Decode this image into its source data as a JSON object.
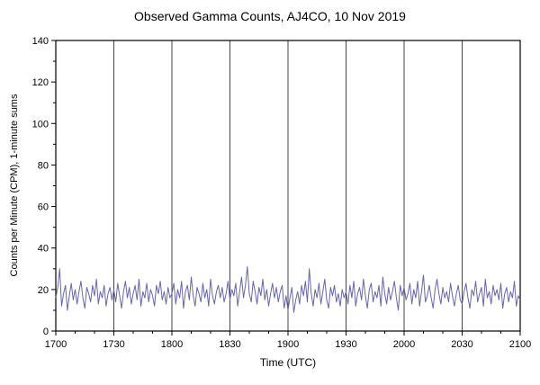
{
  "chart_data": {
    "type": "line",
    "title": "Observed Gamma Counts, AJ4CO, 10 Nov 2019",
    "xlabel": "Time (UTC)",
    "ylabel": "Counts per Minute (CPM), 1-minute sums",
    "xlim": [
      0,
      240
    ],
    "ylim": [
      0,
      140
    ],
    "x_step": 1,
    "x_major_step": 30,
    "x_minor_step": 10,
    "y_minor_step": 10,
    "grid": "vertical-only",
    "legend": "none",
    "line_color": "#6666aa",
    "x_ticks": {
      "positions": [
        0,
        30,
        60,
        90,
        120,
        150,
        180,
        210,
        240
      ],
      "labels": [
        "1700",
        "1730",
        "1800",
        "1830",
        "1900",
        "1930",
        "2000",
        "2030",
        "2100"
      ]
    },
    "y_ticks": [
      0,
      20,
      40,
      60,
      80,
      100,
      120,
      140
    ],
    "values": [
      16,
      21,
      30,
      12,
      18,
      22,
      10,
      17,
      23,
      15,
      20,
      13,
      19,
      24,
      16,
      11,
      21,
      18,
      14,
      22,
      17,
      25,
      13,
      19,
      16,
      22,
      12,
      18,
      21,
      15,
      20,
      14,
      23,
      17,
      11,
      19,
      24,
      16,
      21,
      13,
      18,
      22,
      15,
      25,
      12,
      19,
      16,
      23,
      14,
      20,
      17,
      12,
      22,
      18,
      24,
      15,
      19,
      13,
      21,
      16,
      18,
      23,
      13,
      20,
      16,
      24,
      11,
      19,
      22,
      15,
      26,
      17,
      12,
      21,
      18,
      14,
      23,
      16,
      20,
      12,
      25,
      17,
      13,
      19,
      22,
      16,
      21,
      14,
      18,
      24,
      15,
      20,
      17,
      23,
      12,
      19,
      26,
      16,
      22,
      31,
      18,
      14,
      24,
      19,
      13,
      21,
      17,
      25,
      15,
      20,
      12,
      18,
      23,
      16,
      21,
      14,
      19,
      22,
      11,
      17,
      10,
      16,
      21,
      9,
      15,
      19,
      13,
      22,
      17,
      24,
      14,
      30,
      18,
      12,
      20,
      16,
      23,
      13,
      19,
      25,
      15,
      11,
      21,
      17,
      22,
      14,
      18,
      12,
      20,
      16,
      19,
      13,
      22,
      16,
      24,
      12,
      18,
      21,
      15,
      25,
      17,
      11,
      20,
      23,
      14,
      19,
      16,
      22,
      12,
      26,
      18,
      13,
      21,
      15,
      19,
      24,
      16,
      10,
      22,
      17,
      21,
      15,
      18,
      23,
      13,
      20,
      16,
      24,
      12,
      19,
      27,
      14,
      17,
      22,
      16,
      11,
      20,
      25,
      18,
      13,
      21,
      16,
      19,
      14,
      23,
      17,
      12,
      18,
      22,
      15,
      13,
      19,
      23,
      16,
      11,
      20,
      17,
      24,
      14,
      18,
      21,
      12,
      25,
      16,
      19,
      13,
      22,
      17,
      20,
      15,
      23,
      11,
      18,
      21,
      14,
      19,
      16,
      24,
      12,
      17,
      15
    ]
  }
}
